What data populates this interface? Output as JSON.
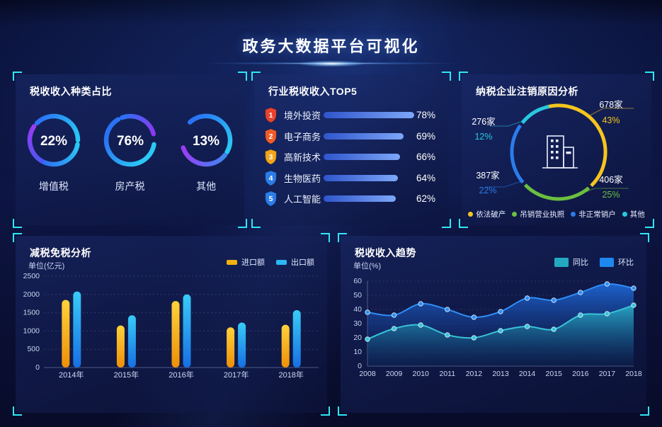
{
  "page_title": "政务大数据平台可视化",
  "panels": {
    "tax_types": {
      "title": "税收收入种类占比"
    },
    "industry_top5": {
      "title": "行业税收收入TOP5"
    },
    "deregistration": {
      "title": "纳税企业注销原因分析"
    },
    "tax_reduction": {
      "title": "减税免税分析",
      "unit": "单位(亿元)",
      "legend": [
        {
          "label": "进口额",
          "color": "#f0b00f"
        },
        {
          "label": "出口额",
          "color": "#2bb7f5"
        }
      ]
    },
    "trend": {
      "title": "税收收入趋势",
      "unit": "单位(%)",
      "legend": [
        {
          "label": "同比",
          "color": "#23a9c0"
        },
        {
          "label": "环比",
          "color": "#1e88ef"
        }
      ]
    }
  },
  "chart_data": [
    {
      "id": "tax_types",
      "type": "pie",
      "variant": "percent-rings",
      "title": "税收收入种类占比",
      "unit": "%",
      "items": [
        {
          "label": "增值税",
          "value": 22
        },
        {
          "label": "房产税",
          "value": 76
        },
        {
          "label": "其他",
          "value": 13
        }
      ]
    },
    {
      "id": "industry_top5",
      "type": "bar",
      "orientation": "horizontal",
      "title": "行业税收收入TOP5",
      "unit": "%",
      "categories": [
        "境外投资",
        "电子商务",
        "高新技术",
        "生物医药",
        "人工智能"
      ],
      "values": [
        78,
        69,
        66,
        64,
        62
      ],
      "badge_colors": [
        "#e8432e",
        "#f05c2a",
        "#f2a51c",
        "#2b7de8",
        "#2b7de8"
      ],
      "bar_gradient": [
        "#2f55cc",
        "#7da7f8"
      ]
    },
    {
      "id": "deregistration",
      "type": "pie",
      "title": "纳税企业注销原因分析",
      "unit": "家",
      "slices": [
        {
          "label": "依法破产",
          "count_label": "678家",
          "count": 678,
          "pct": 43,
          "color": "#f5c51e"
        },
        {
          "label": "吊销营业执照",
          "count_label": "406家",
          "count": 406,
          "pct": 25,
          "color": "#6cbf3f"
        },
        {
          "label": "非正常销户",
          "count_label": "387家",
          "count": 387,
          "pct": 22,
          "color": "#2b7ce9"
        },
        {
          "label": "其他",
          "count_label": "276家",
          "count": 276,
          "pct": 12,
          "color": "#27c8e0"
        }
      ]
    },
    {
      "id": "tax_reduction",
      "type": "bar",
      "title": "减税免税分析",
      "ylabel": "单位(亿元)",
      "categories": [
        "2014年",
        "2015年",
        "2016年",
        "2017年",
        "2018年"
      ],
      "series": [
        {
          "name": "进口额",
          "values": [
            1850,
            1150,
            1820,
            1100,
            1170
          ],
          "gradient": [
            "#ffd23a",
            "#ee8f08"
          ]
        },
        {
          "name": "出口额",
          "values": [
            2080,
            1430,
            2000,
            1230,
            1570
          ],
          "gradient": [
            "#38cbf8",
            "#176fe3"
          ]
        }
      ],
      "ylim": [
        0,
        2500
      ],
      "yticks": [
        0,
        500,
        1000,
        1500,
        2000,
        2500
      ],
      "grid": "dotted",
      "legend_position": "top-right"
    },
    {
      "id": "trend",
      "type": "area",
      "title": "税收收入趋势",
      "ylabel": "单位(%)",
      "x": [
        "2008",
        "2009",
        "2010",
        "2011",
        "2012",
        "2013",
        "2014",
        "2015",
        "2016",
        "2017",
        "2018"
      ],
      "series": [
        {
          "name": "环比",
          "values": [
            38,
            36,
            44,
            40,
            34.5,
            38.5,
            48,
            46.5,
            52,
            58,
            55
          ],
          "line_color": "#2f8df5",
          "fill_from": "rgba(32,112,230,0.85)",
          "fill_to": "rgba(12,30,90,0.08)"
        },
        {
          "name": "同比",
          "values": [
            19,
            26.5,
            29,
            22,
            20,
            25,
            28,
            26,
            36,
            37,
            43
          ],
          "line_color": "#38c3d8",
          "fill_from": "rgba(42,172,196,0.9)",
          "fill_to": "rgba(10,60,110,0.15)"
        }
      ],
      "ylim": [
        0,
        60
      ],
      "yticks": [
        0,
        10,
        20,
        30,
        40,
        50,
        60
      ],
      "grid": "dotted",
      "legend_position": "top-right"
    }
  ],
  "colors": {
    "accent_bracket": "#2ee6f7",
    "background": "#0a1138",
    "donut_palette": [
      "#9b3bf5",
      "#2a71f5",
      "#2bc8f5"
    ]
  }
}
